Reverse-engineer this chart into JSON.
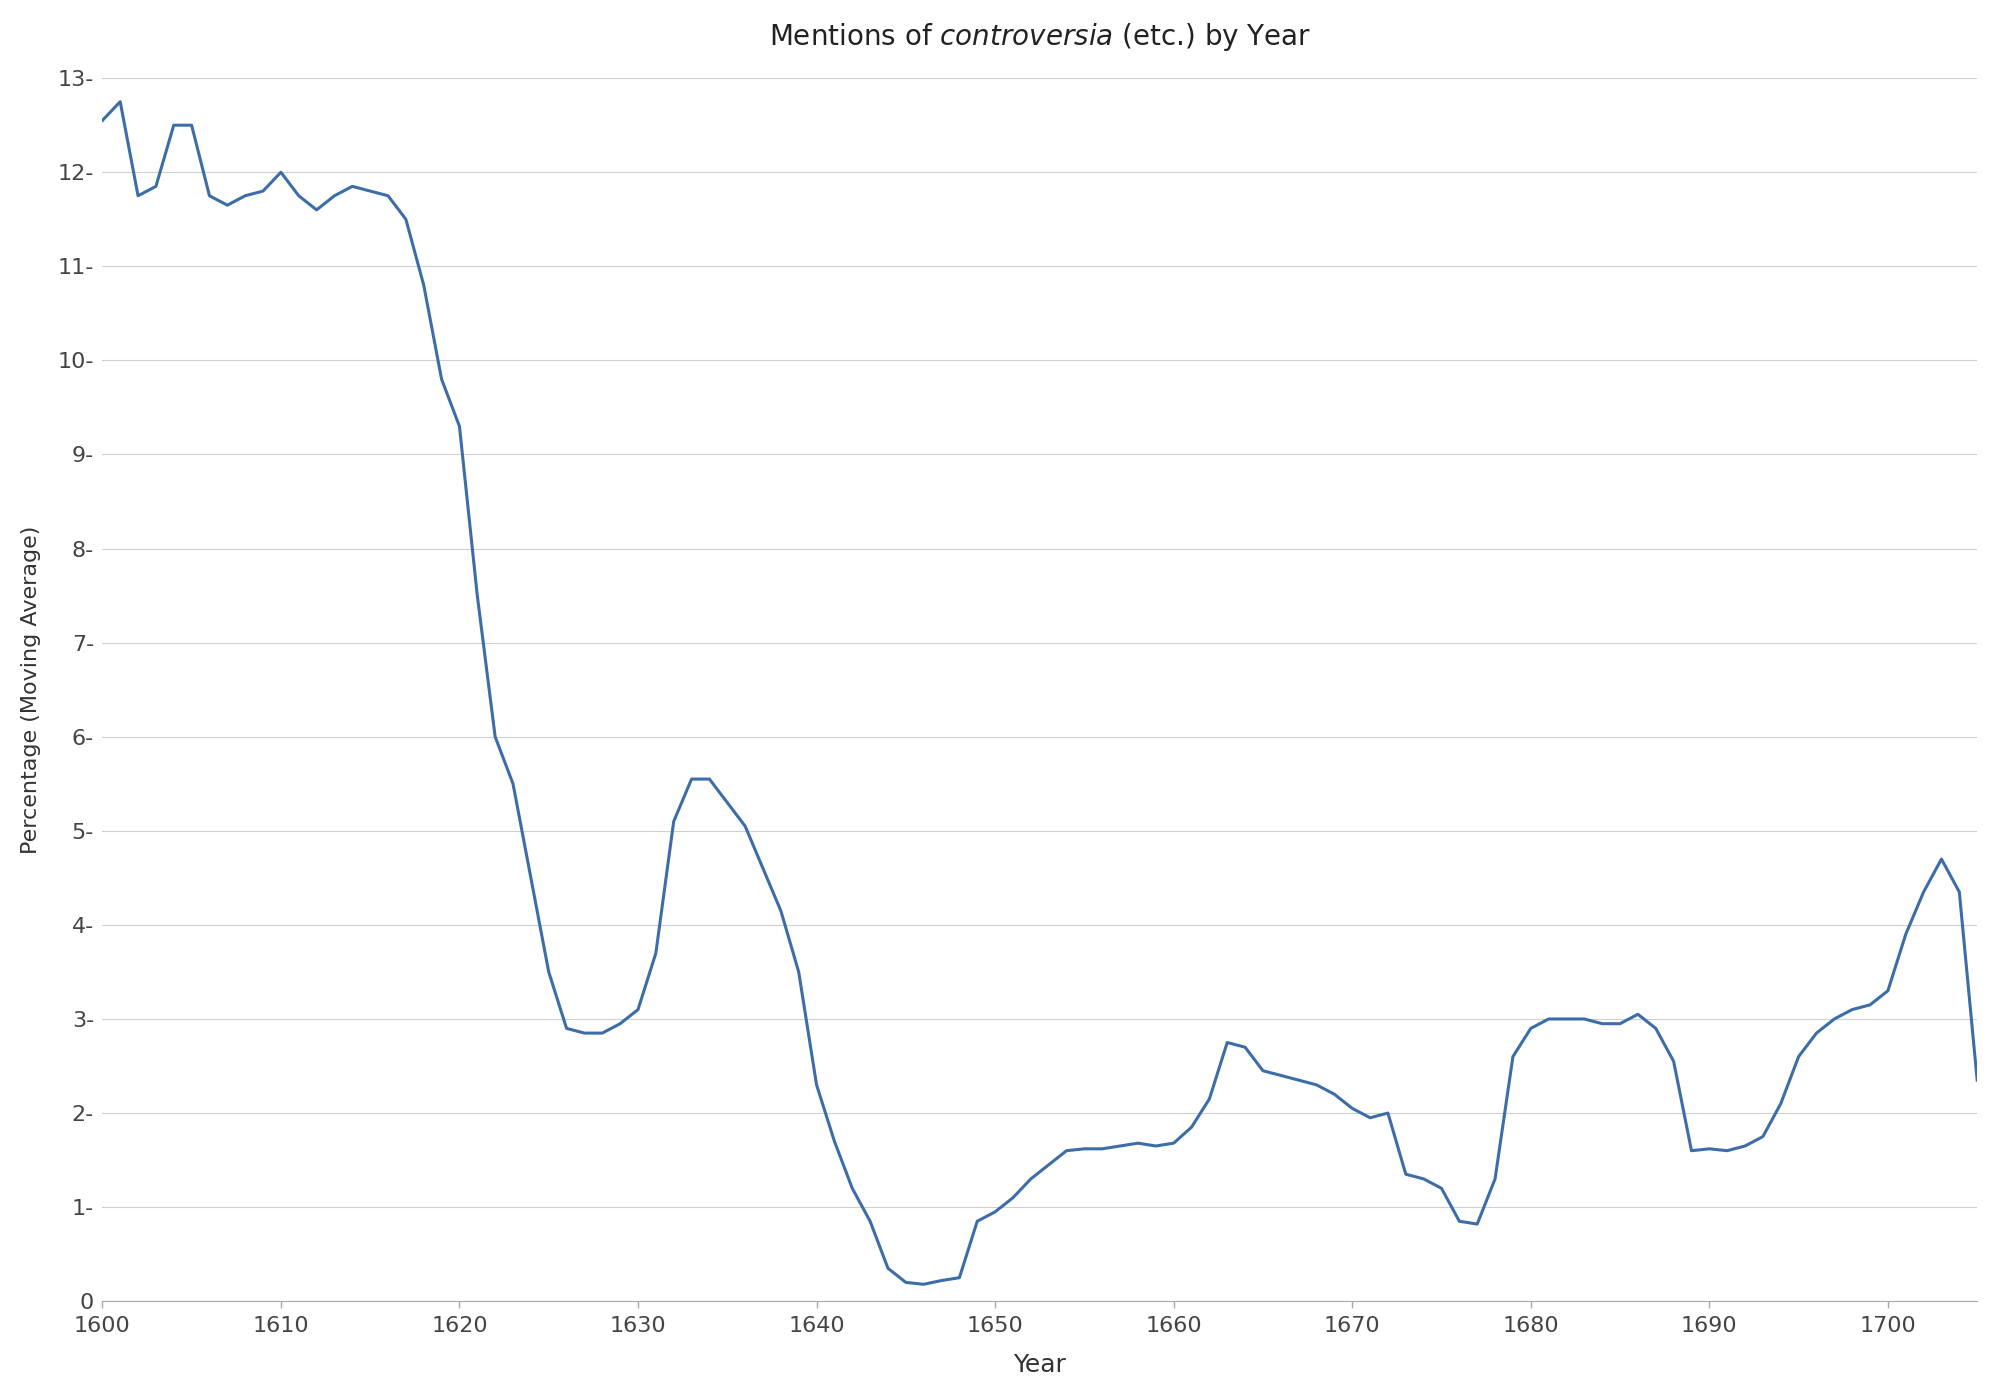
{
  "xlabel": "Year",
  "ylabel": "Percentage (Moving Average)",
  "line_color": "#3d6da8",
  "line_width": 2.2,
  "background_color": "#ffffff",
  "xlim": [
    1600,
    1705
  ],
  "ylim": [
    0,
    13
  ],
  "yticks": [
    0,
    1,
    2,
    3,
    4,
    5,
    6,
    7,
    8,
    9,
    10,
    11,
    12,
    13
  ],
  "xticks": [
    1600,
    1610,
    1620,
    1630,
    1640,
    1650,
    1660,
    1670,
    1680,
    1690,
    1700
  ],
  "x": [
    1600,
    1601,
    1602,
    1603,
    1604,
    1605,
    1606,
    1607,
    1608,
    1609,
    1610,
    1611,
    1612,
    1613,
    1614,
    1615,
    1616,
    1617,
    1618,
    1619,
    1620,
    1621,
    1622,
    1623,
    1624,
    1625,
    1626,
    1627,
    1628,
    1629,
    1630,
    1631,
    1632,
    1633,
    1634,
    1635,
    1636,
    1637,
    1638,
    1639,
    1640,
    1641,
    1642,
    1643,
    1644,
    1645,
    1646,
    1647,
    1648,
    1649,
    1650,
    1651,
    1652,
    1653,
    1654,
    1655,
    1656,
    1657,
    1658,
    1659,
    1660,
    1661,
    1662,
    1663,
    1664,
    1665,
    1666,
    1667,
    1668,
    1669,
    1670,
    1671,
    1672,
    1673,
    1674,
    1675,
    1676,
    1677,
    1678,
    1679,
    1680,
    1681,
    1682,
    1683,
    1684,
    1685,
    1686,
    1687,
    1688,
    1689,
    1690,
    1691,
    1692,
    1693,
    1694,
    1695,
    1696,
    1697,
    1698,
    1699,
    1700,
    1701,
    1702,
    1703,
    1704,
    1705
  ],
  "y": [
    12.55,
    12.75,
    11.75,
    11.85,
    12.5,
    12.5,
    11.75,
    11.65,
    11.75,
    11.8,
    12.0,
    11.75,
    11.6,
    11.75,
    11.85,
    11.8,
    11.75,
    11.5,
    10.8,
    9.8,
    9.3,
    7.5,
    6.0,
    5.5,
    4.5,
    3.5,
    2.9,
    2.85,
    2.85,
    2.95,
    3.1,
    3.7,
    5.1,
    5.55,
    5.55,
    5.3,
    5.05,
    4.6,
    4.15,
    3.5,
    2.3,
    1.7,
    1.2,
    0.85,
    0.35,
    0.2,
    0.18,
    0.22,
    0.25,
    0.85,
    0.95,
    1.1,
    1.3,
    1.45,
    1.6,
    1.62,
    1.62,
    1.65,
    1.68,
    1.65,
    1.68,
    1.85,
    2.15,
    2.75,
    2.7,
    2.45,
    2.4,
    2.35,
    2.3,
    2.2,
    2.05,
    1.95,
    2.0,
    1.35,
    1.3,
    1.2,
    0.85,
    0.82,
    1.3,
    2.6,
    2.9,
    3.0,
    3.0,
    3.0,
    2.95,
    2.95,
    3.05,
    2.9,
    2.55,
    1.6,
    1.62,
    1.6,
    1.65,
    1.75,
    2.1,
    2.6,
    2.85,
    3.0,
    3.1,
    3.15,
    3.3,
    3.9,
    4.35,
    4.7,
    4.35,
    2.35
  ]
}
